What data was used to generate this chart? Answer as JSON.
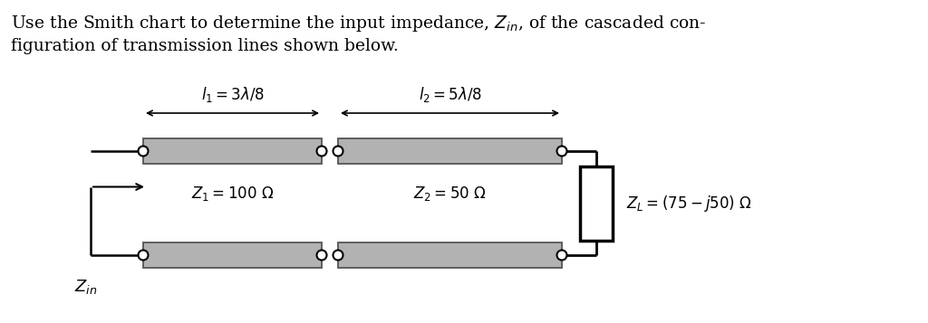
{
  "background_color": "#ffffff",
  "text_color": "#000000",
  "title_line1": "Use the Smith chart to determine the input impedance, $Z_{in}$, of the cascaded con-",
  "title_line2": "figuration of transmission lines shown below.",
  "title_fontsize": 13.5,
  "gray_fill": "#b2b2b2",
  "gray_edge": "#555555",
  "white_fill": "#ffffff",
  "black_edge": "#000000",
  "segment1_label": "$l_1 = 3\\lambda/8$",
  "segment2_label": "$l_2 = 5\\lambda/8$",
  "z1_label": "$Z_1 = 100\\ \\Omega$",
  "z2_label": "$Z_2 = 50\\ \\Omega$",
  "zl_label": "$Z_L = (75 - j50)\\ \\Omega$",
  "zin_label": "$Z_{in}$",
  "label_fontsize": 12,
  "sub_fontsize": 11
}
